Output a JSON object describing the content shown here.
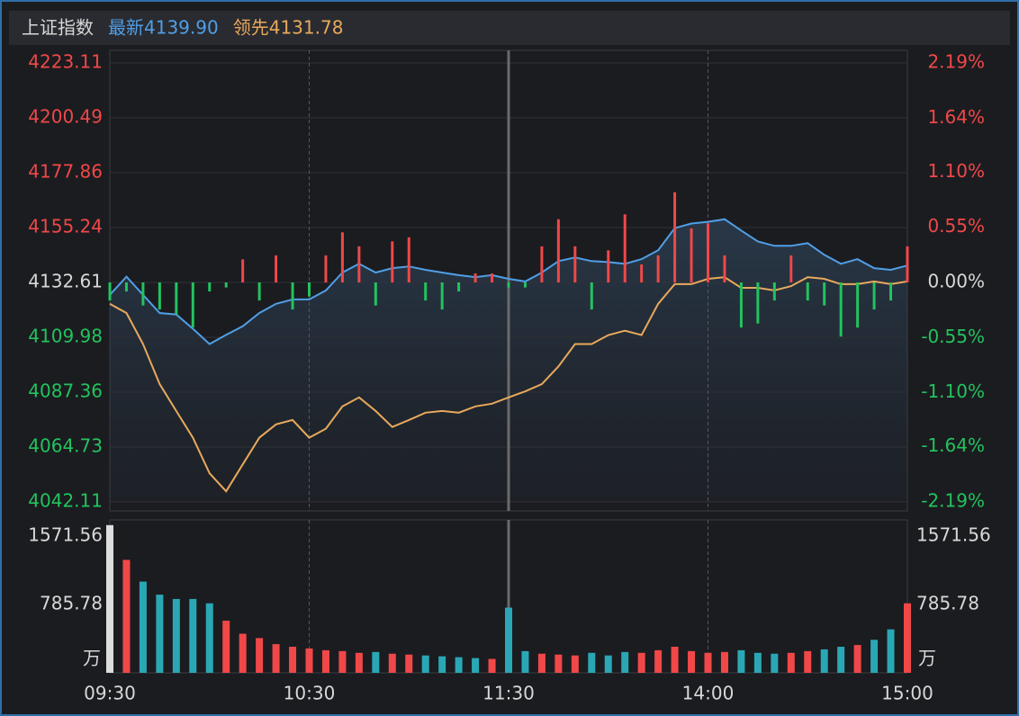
{
  "chart_data": [
    {
      "type": "line",
      "title": "上证指数",
      "x": [
        0,
        5,
        10,
        15,
        20,
        25,
        30,
        35,
        40,
        45,
        50,
        55,
        60,
        65,
        70,
        75,
        80,
        85,
        90,
        95,
        100,
        105,
        110,
        115,
        120,
        125,
        130,
        135,
        140,
        145,
        150,
        155,
        160,
        165,
        170,
        175,
        180,
        185,
        190,
        195,
        200,
        205,
        210,
        215,
        220,
        225,
        230,
        235,
        240
      ],
      "xlim": [
        0,
        240
      ],
      "ylim": [
        4042.11,
        4223.11
      ],
      "yticks": [
        4223.11,
        4200.49,
        4177.86,
        4155.24,
        4132.61,
        4109.98,
        4087.36,
        4064.73,
        4042.11
      ],
      "y2lim": [
        -2.19,
        2.19
      ],
      "y2ticks": [
        {
          "value": 2.19,
          "label": "2.19%"
        },
        {
          "value": 1.64,
          "label": "1.64%"
        },
        {
          "value": 1.1,
          "label": "1.10%"
        },
        {
          "value": 0.55,
          "label": "0.55%"
        },
        {
          "value": 0,
          "label": "0.00%"
        },
        {
          "value": -0.55,
          "label": "-0.55%"
        },
        {
          "value": -1.1,
          "label": "-1.10%"
        },
        {
          "value": -1.64,
          "label": "-1.64%"
        },
        {
          "value": -2.19,
          "label": "-2.19%"
        }
      ],
      "up_color": "#f04848",
      "down_color": "#22c35e",
      "grid": true,
      "series": [
        {
          "name": "最新4139.90",
          "color": "#4f9fe6",
          "values": [
            4127.5,
            4135,
            4127.5,
            4120,
            4119.4,
            4113.5,
            4107.2,
            4111,
            4114.6,
            4120,
            4123.8,
            4125.6,
            4125.6,
            4129.3,
            4136.7,
            4140.3,
            4136.7,
            4138.5,
            4139.2,
            4137.8,
            4136.7,
            4135.6,
            4134.8,
            4135.6,
            4134.1,
            4133,
            4136.7,
            4141.4,
            4142.9,
            4141.4,
            4141,
            4140.3,
            4142.2,
            4145.9,
            4155,
            4156.9,
            4157.6,
            4158.7,
            4154,
            4149.5,
            4147.7,
            4147.7,
            4148.8,
            4144,
            4140.3,
            4142.2,
            4138.5,
            4137.8,
            4139.6
          ]
        },
        {
          "name": "领先4131.78",
          "color": "#e8a95c",
          "values": [
            4123.8,
            4120,
            4107.2,
            4090.7,
            4079.6,
            4068.6,
            4053.9,
            4046.5,
            4057.6,
            4068.6,
            4074.1,
            4075.9,
            4068.6,
            4072.3,
            4081.5,
            4085.2,
            4079.6,
            4073,
            4075.9,
            4078.9,
            4079.6,
            4078.9,
            4081.5,
            4082.6,
            4085.2,
            4087.7,
            4090.7,
            4098,
            4107.2,
            4107.2,
            4110.9,
            4112.7,
            4110.9,
            4123.8,
            4131.9,
            4131.9,
            4134.1,
            4134.8,
            4130.4,
            4130.4,
            4129.3,
            4131.1,
            4134.8,
            4134.1,
            4131.9,
            4131.9,
            4133,
            4131.9,
            4133
          ]
        },
        {
          "type": "bar",
          "axis": "y2",
          "values": [
            -0.18,
            -0.09,
            -0.23,
            -0.27,
            -0.32,
            -0.45,
            -0.09,
            -0.05,
            0.23,
            -0.18,
            0.27,
            -0.27,
            -0.14,
            0.27,
            0.5,
            0.36,
            -0.23,
            0.41,
            0.45,
            -0.18,
            -0.27,
            -0.09,
            0.09,
            0.09,
            -0.05,
            -0.05,
            0.36,
            0.63,
            0.36,
            -0.27,
            0.32,
            0.68,
            0.18,
            0.27,
            0.9,
            0.54,
            0.59,
            0.27,
            -0.45,
            -0.41,
            -0.18,
            0.27,
            -0.18,
            -0.23,
            -0.54,
            -0.45,
            -0.27,
            -0.18,
            0.36
          ]
        }
      ]
    },
    {
      "type": "bar",
      "x": [
        0,
        5,
        10,
        15,
        20,
        25,
        30,
        35,
        40,
        45,
        50,
        55,
        60,
        65,
        70,
        75,
        80,
        85,
        90,
        95,
        100,
        105,
        110,
        115,
        120,
        125,
        130,
        135,
        140,
        145,
        150,
        155,
        160,
        165,
        170,
        175,
        180,
        185,
        190,
        195,
        200,
        205,
        210,
        215,
        220,
        225,
        230,
        235,
        240
      ],
      "xlim": [
        0,
        240
      ],
      "xticks": [
        {
          "value": 0,
          "label": "09:30"
        },
        {
          "value": 60,
          "label": "10:30"
        },
        {
          "value": 120,
          "label": "11:30"
        },
        {
          "value": 180,
          "label": "14:00"
        },
        {
          "value": 240,
          "label": "15:00"
        }
      ],
      "ylim": [
        0,
        1760
      ],
      "yticks": [
        1571.56,
        785.78
      ],
      "unit": "万",
      "up_color": "#f04848",
      "down_color": "#2aa7b5",
      "values": [
        1700,
        1300,
        1050,
        900,
        850,
        850,
        800,
        600,
        450,
        400,
        330,
        300,
        280,
        260,
        250,
        230,
        240,
        220,
        210,
        200,
        190,
        180,
        170,
        160,
        750,
        250,
        220,
        210,
        200,
        230,
        200,
        240,
        230,
        260,
        300,
        250,
        230,
        240,
        260,
        230,
        220,
        230,
        250,
        270,
        300,
        320,
        380,
        500,
        800
      ]
    }
  ]
}
